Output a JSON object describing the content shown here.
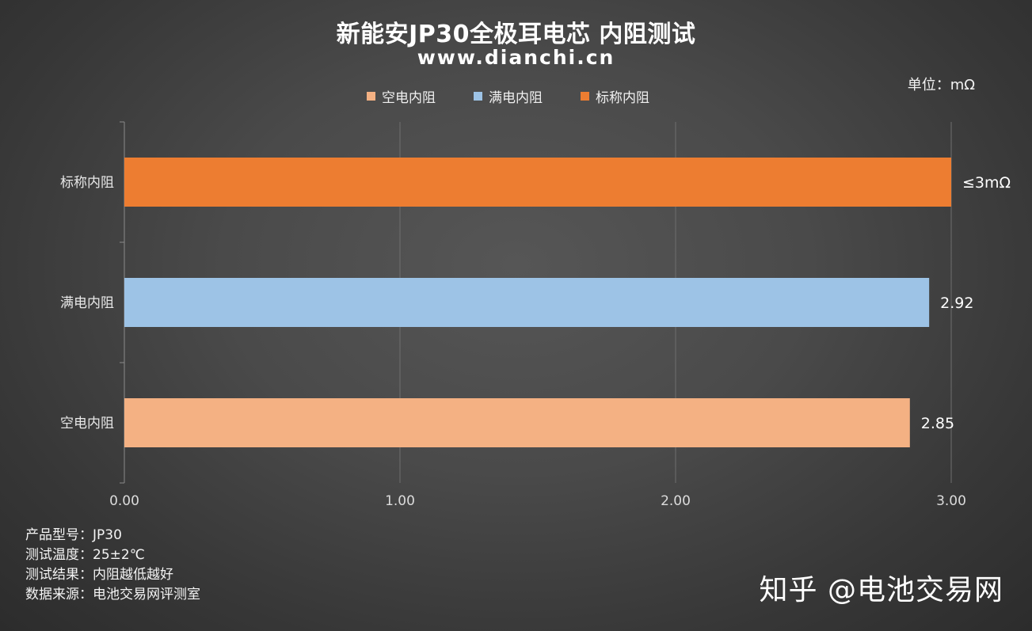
{
  "chart_data": {
    "type": "bar",
    "orientation": "horizontal",
    "title": "新能安JP30全极耳电芯 内阻测试",
    "subtitle": "www.dianchi.cn",
    "unit_label": "单位：mΩ",
    "categories": [
      "标称内阻",
      "满电内阻",
      "空电内阻"
    ],
    "values": [
      3.0,
      2.92,
      2.85
    ],
    "data_labels": [
      "≤3mΩ",
      "2.92",
      "2.85"
    ],
    "colors": [
      "#ed7d31",
      "#9dc3e6",
      "#f4b183"
    ],
    "legend": [
      {
        "name": "空电内阻",
        "color": "#f4b183"
      },
      {
        "name": "满电内阻",
        "color": "#9dc3e6"
      },
      {
        "name": "标称内阻",
        "color": "#ed7d31"
      }
    ],
    "legend_position": "top",
    "xlim": [
      0,
      3
    ],
    "x_ticks": [
      "0.00",
      "1.00",
      "2.00",
      "3.00"
    ],
    "grid": true
  },
  "info_lines": [
    "产品型号：JP30",
    "测试温度：25±2℃",
    "测试结果：内阻越低越好",
    "数据来源：电池交易网评测室"
  ],
  "watermark": "知乎 @电池交易网"
}
